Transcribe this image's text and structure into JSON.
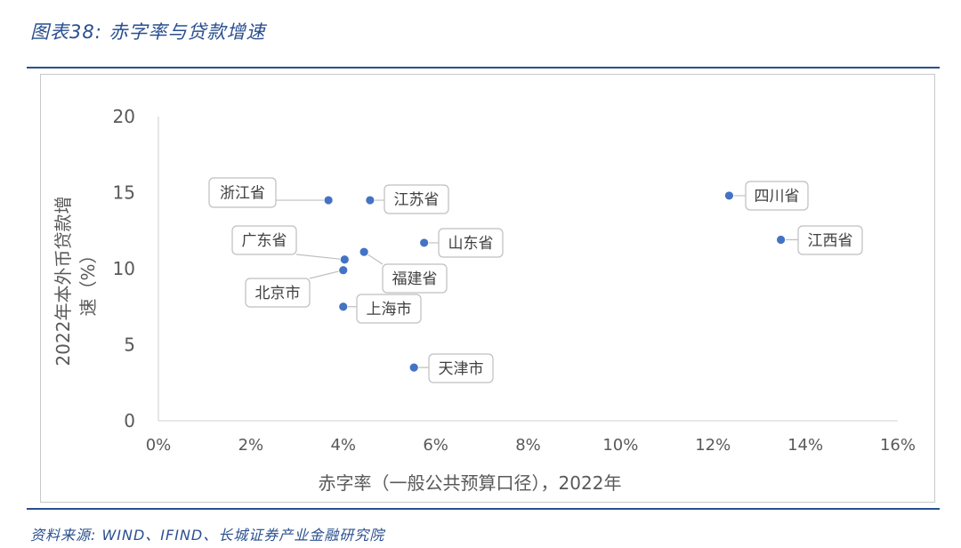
{
  "figure": {
    "title": "图表38:  赤字率与贷款增速",
    "source": "资料来源: WIND、IFIND、长城证券产业金融研究院"
  },
  "chart_data": {
    "type": "scatter",
    "xlabel": "赤字率（一般公共预算口径），2022年",
    "ylabel_line1": "2022年本外币贷款增",
    "ylabel_line2": "速（%）",
    "xlim": [
      0,
      0.16
    ],
    "ylim": [
      0,
      20
    ],
    "x_ticks": [
      {
        "v": 0,
        "label": "0%"
      },
      {
        "v": 0.02,
        "label": "2%"
      },
      {
        "v": 0.04,
        "label": "4%"
      },
      {
        "v": 0.06,
        "label": "6%"
      },
      {
        "v": 0.08,
        "label": "8%"
      },
      {
        "v": 0.1,
        "label": "10%"
      },
      {
        "v": 0.12,
        "label": "12%"
      },
      {
        "v": 0.14,
        "label": "14%"
      },
      {
        "v": 0.16,
        "label": "16%"
      }
    ],
    "y_ticks": [
      {
        "v": 0,
        "label": "0"
      },
      {
        "v": 5,
        "label": "5"
      },
      {
        "v": 10,
        "label": "10"
      },
      {
        "v": 15,
        "label": "15"
      },
      {
        "v": 20,
        "label": "20"
      }
    ],
    "grid": false,
    "marker_color": "#4472c4",
    "points": [
      {
        "label": "浙江省",
        "x": 0.0368,
        "y": 14.5
      },
      {
        "label": "江苏省",
        "x": 0.0458,
        "y": 14.5
      },
      {
        "label": "四川省",
        "x": 0.1235,
        "y": 14.8
      },
      {
        "label": "江西省",
        "x": 0.1347,
        "y": 11.9
      },
      {
        "label": "山东省",
        "x": 0.0575,
        "y": 11.7
      },
      {
        "label": "广东省",
        "x": 0.0403,
        "y": 10.6
      },
      {
        "label": "福建省",
        "x": 0.0445,
        "y": 11.1
      },
      {
        "label": "北京市",
        "x": 0.04,
        "y": 9.9
      },
      {
        "label": "上海市",
        "x": 0.04,
        "y": 7.5
      },
      {
        "label": "天津市",
        "x": 0.0553,
        "y": 3.5
      }
    ]
  }
}
